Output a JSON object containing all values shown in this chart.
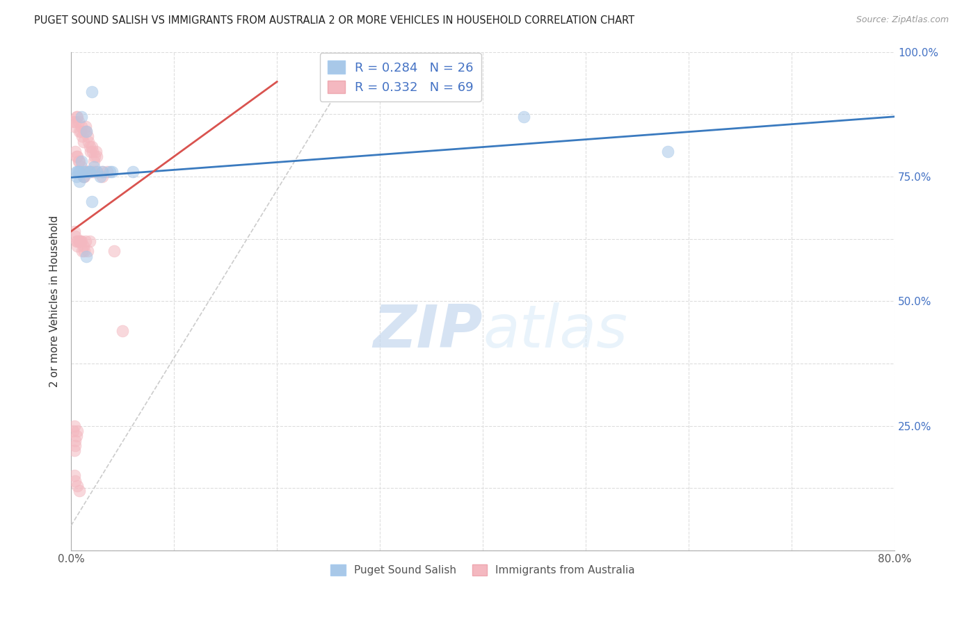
{
  "title": "PUGET SOUND SALISH VS IMMIGRANTS FROM AUSTRALIA 2 OR MORE VEHICLES IN HOUSEHOLD CORRELATION CHART",
  "source": "Source: ZipAtlas.com",
  "ylabel": "2 or more Vehicles in Household",
  "legend_blue_label": "Puget Sound Salish",
  "legend_pink_label": "Immigrants from Australia",
  "blue_R": "0.284",
  "blue_N": "26",
  "pink_R": "0.332",
  "pink_N": "69",
  "xlim": [
    0.0,
    0.8
  ],
  "ylim": [
    0.0,
    1.0
  ],
  "blue_color": "#a8c8e8",
  "pink_color": "#f4b8c0",
  "blue_line_color": "#3a7abf",
  "pink_line_color": "#d9534f",
  "diagonal_color": "#cccccc",
  "background_color": "#ffffff",
  "grid_color": "#dddddd",
  "blue_scatter_x": [
    0.006,
    0.02,
    0.01,
    0.015,
    0.008,
    0.005,
    0.01,
    0.008,
    0.012,
    0.014,
    0.018,
    0.005,
    0.007,
    0.012,
    0.018,
    0.022,
    0.025,
    0.03,
    0.038,
    0.04,
    0.028,
    0.02,
    0.06,
    0.44,
    0.58,
    0.015
  ],
  "blue_scatter_y": [
    0.76,
    0.92,
    0.87,
    0.84,
    0.76,
    0.75,
    0.78,
    0.74,
    0.76,
    0.76,
    0.76,
    0.76,
    0.76,
    0.75,
    0.76,
    0.77,
    0.76,
    0.76,
    0.76,
    0.76,
    0.75,
    0.7,
    0.76,
    0.87,
    0.8,
    0.59
  ],
  "pink_scatter_x": [
    0.002,
    0.003,
    0.004,
    0.005,
    0.006,
    0.007,
    0.008,
    0.009,
    0.01,
    0.011,
    0.012,
    0.013,
    0.014,
    0.015,
    0.016,
    0.017,
    0.018,
    0.019,
    0.02,
    0.021,
    0.022,
    0.023,
    0.024,
    0.025,
    0.004,
    0.005,
    0.006,
    0.007,
    0.008,
    0.01,
    0.012,
    0.013,
    0.015,
    0.016,
    0.017,
    0.02,
    0.022,
    0.025,
    0.03,
    0.03,
    0.035,
    0.042,
    0.05,
    0.003,
    0.004,
    0.005,
    0.006,
    0.006,
    0.008,
    0.008,
    0.009,
    0.01,
    0.011,
    0.012,
    0.013,
    0.014,
    0.016,
    0.018,
    0.002,
    0.003,
    0.004,
    0.003,
    0.004,
    0.005,
    0.006,
    0.003,
    0.004,
    0.006,
    0.008
  ],
  "pink_scatter_y": [
    0.86,
    0.85,
    0.86,
    0.87,
    0.87,
    0.86,
    0.84,
    0.84,
    0.85,
    0.83,
    0.82,
    0.84,
    0.85,
    0.84,
    0.83,
    0.82,
    0.81,
    0.8,
    0.81,
    0.8,
    0.78,
    0.79,
    0.8,
    0.79,
    0.8,
    0.79,
    0.79,
    0.78,
    0.78,
    0.77,
    0.75,
    0.75,
    0.76,
    0.76,
    0.76,
    0.76,
    0.76,
    0.76,
    0.75,
    0.76,
    0.76,
    0.6,
    0.44,
    0.64,
    0.63,
    0.62,
    0.62,
    0.61,
    0.62,
    0.62,
    0.62,
    0.62,
    0.6,
    0.61,
    0.6,
    0.62,
    0.6,
    0.62,
    0.24,
    0.25,
    0.22,
    0.2,
    0.21,
    0.23,
    0.24,
    0.15,
    0.14,
    0.13,
    0.12
  ],
  "blue_trendline_x": [
    0.0,
    0.8
  ],
  "blue_trendline_y": [
    0.748,
    0.87
  ],
  "pink_trendline_x": [
    0.0,
    0.2
  ],
  "pink_trendline_y": [
    0.64,
    0.94
  ]
}
